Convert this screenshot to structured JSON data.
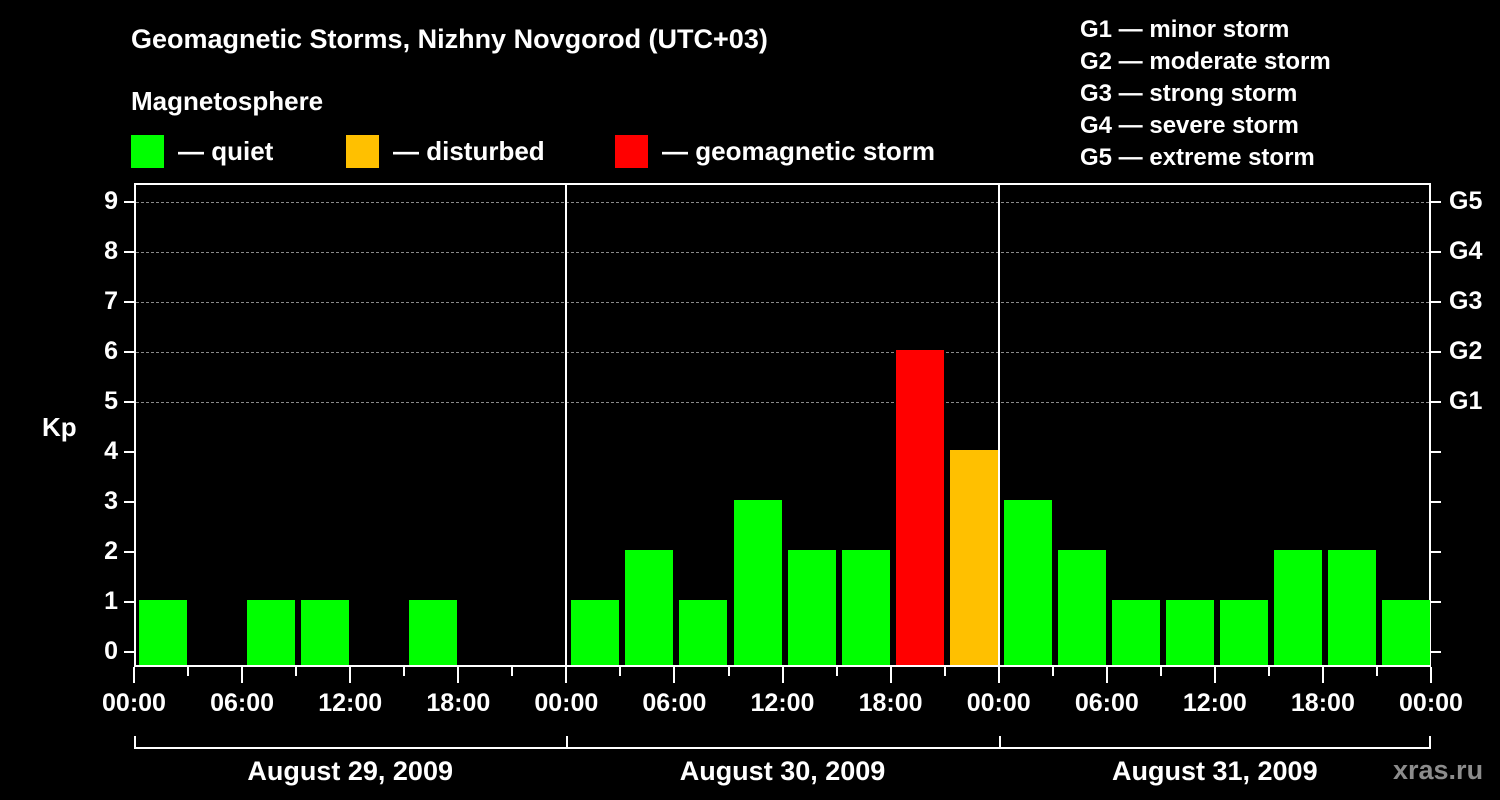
{
  "title": "Geomagnetic Storms, Nizhny Novgorod (UTC+03)",
  "subtitle": "Magnetosphere",
  "legend": [
    {
      "label": "— quiet",
      "color": "#00FF00"
    },
    {
      "label": "— disturbed",
      "color": "#FFC000"
    },
    {
      "label": "— geomagnetic storm",
      "color": "#FF0000"
    }
  ],
  "storm_scale": [
    "G1 — minor storm",
    "G2 — moderate storm",
    "G3 — strong storm",
    "G4 — severe storm",
    "G5 — extreme storm"
  ],
  "watermark": "xras.ru",
  "chart_data": {
    "type": "bar",
    "title": "Geomagnetic Storms, Nizhny Novgorod (UTC+03)",
    "xlabel": "",
    "ylabel": "Kp",
    "ylim": [
      0,
      9
    ],
    "y_ticks": [
      "0",
      "1",
      "2",
      "3",
      "4",
      "5",
      "6",
      "7",
      "8",
      "9"
    ],
    "right_axis_labels": {
      "5": "G1",
      "6": "G2",
      "7": "G3",
      "8": "G4",
      "9": "G5"
    },
    "x_tick_labels": [
      "00:00",
      "06:00",
      "12:00",
      "18:00",
      "00:00",
      "06:00",
      "12:00",
      "18:00",
      "00:00",
      "06:00",
      "12:00",
      "18:00",
      "00:00"
    ],
    "days": [
      "August 29, 2009",
      "August 30, 2009",
      "August 31, 2009"
    ],
    "interval_hours": 3,
    "categories": [
      "Aug 29 00-03",
      "Aug 29 03-06",
      "Aug 29 06-09",
      "Aug 29 09-12",
      "Aug 29 12-15",
      "Aug 29 15-18",
      "Aug 29 18-21",
      "Aug 29 21-24",
      "Aug 30 00-03",
      "Aug 30 03-06",
      "Aug 30 06-09",
      "Aug 30 09-12",
      "Aug 30 12-15",
      "Aug 30 15-18",
      "Aug 30 18-21",
      "Aug 30 21-24",
      "Aug 31 00-03",
      "Aug 31 03-06",
      "Aug 31 06-09",
      "Aug 31 09-12",
      "Aug 31 12-15",
      "Aug 31 15-18",
      "Aug 31 18-21",
      "Aug 31 21-24"
    ],
    "values": [
      1,
      0,
      1,
      1,
      0,
      1,
      0,
      0,
      1,
      2,
      1,
      3,
      2,
      2,
      6,
      4,
      3,
      2,
      1,
      1,
      1,
      2,
      2,
      1
    ],
    "status": [
      "quiet",
      "quiet",
      "quiet",
      "quiet",
      "quiet",
      "quiet",
      "quiet",
      "quiet",
      "quiet",
      "quiet",
      "quiet",
      "quiet",
      "quiet",
      "quiet",
      "storm",
      "disturbed",
      "quiet",
      "quiet",
      "quiet",
      "quiet",
      "quiet",
      "quiet",
      "quiet",
      "quiet"
    ],
    "status_colors": {
      "quiet": "#00FF00",
      "disturbed": "#FFC000",
      "storm": "#FF0000"
    },
    "grid": "dashed horizontal at Kp 5-9",
    "legend_position": "top"
  }
}
